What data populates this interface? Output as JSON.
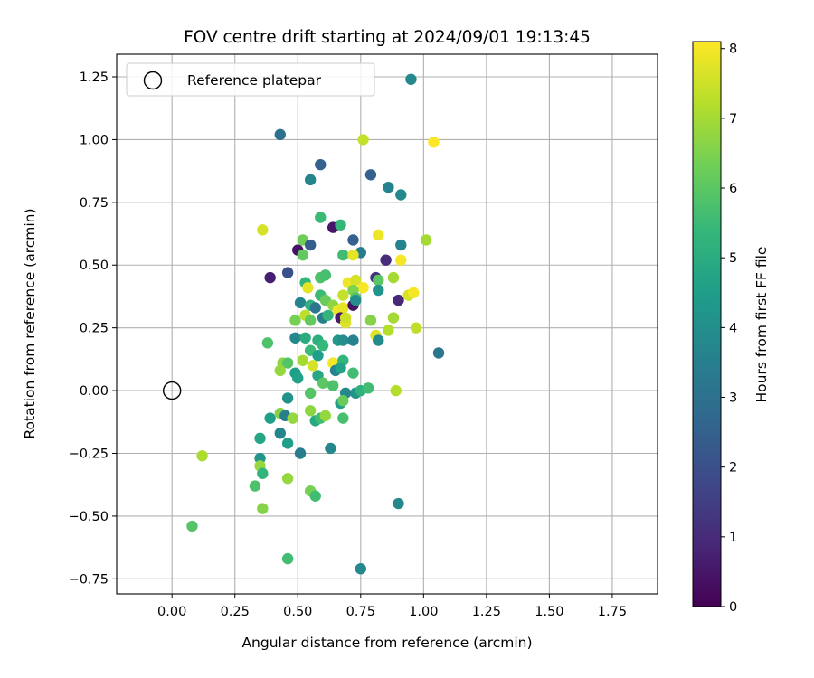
{
  "chart_data": {
    "type": "scatter",
    "title": "FOV centre drift starting at 2024/09/01 19:13:45",
    "xlabel": "Angular distance from reference (arcmin)",
    "ylabel": "Rotation from reference (arcmin)",
    "xlim": [
      -0.22,
      1.93
    ],
    "ylim": [
      -0.81,
      1.34
    ],
    "xticks": [
      0.0,
      0.25,
      0.5,
      0.75,
      1.0,
      1.25,
      1.5,
      1.75
    ],
    "xtick_labels": [
      "0.00",
      "0.25",
      "0.50",
      "0.75",
      "1.00",
      "1.25",
      "1.50",
      "1.75"
    ],
    "yticks": [
      -0.75,
      -0.5,
      -0.25,
      0.0,
      0.25,
      0.5,
      0.75,
      1.0,
      1.25
    ],
    "ytick_labels": [
      "−0.75",
      "−0.50",
      "−0.25",
      "0.00",
      "0.25",
      "0.50",
      "0.75",
      "1.00",
      "1.25"
    ],
    "grid": true,
    "legend": {
      "placement": "top-left",
      "entries": [
        "Reference platepar"
      ]
    },
    "reference_point": {
      "x": 0.0,
      "y": 0.0,
      "marker": "open-circle"
    },
    "colorbar": {
      "label": "Hours from first FF file",
      "range": [
        0,
        8.1
      ],
      "ticks": [
        0,
        1,
        2,
        3,
        4,
        5,
        6,
        7,
        8
      ],
      "colormap": "viridis",
      "colormap_stops": [
        "#440154",
        "#482878",
        "#3e4989",
        "#31688e",
        "#26828e",
        "#1f9e89",
        "#35b779",
        "#6ece58",
        "#b5de2b",
        "#fde725"
      ]
    },
    "points": [
      {
        "x": 0.43,
        "y": 1.02,
        "c": 3.0
      },
      {
        "x": 0.95,
        "y": 1.24,
        "c": 3.8
      },
      {
        "x": 0.76,
        "y": 1.0,
        "c": 7.4
      },
      {
        "x": 1.04,
        "y": 0.99,
        "c": 8.1
      },
      {
        "x": 0.59,
        "y": 0.9,
        "c": 2.5
      },
      {
        "x": 0.79,
        "y": 0.86,
        "c": 2.5
      },
      {
        "x": 0.55,
        "y": 0.84,
        "c": 3.7
      },
      {
        "x": 0.86,
        "y": 0.81,
        "c": 3.6
      },
      {
        "x": 0.91,
        "y": 0.78,
        "c": 3.8
      },
      {
        "x": 0.59,
        "y": 0.69,
        "c": 5.5
      },
      {
        "x": 0.36,
        "y": 0.64,
        "c": 7.6
      },
      {
        "x": 0.64,
        "y": 0.65,
        "c": 0.5
      },
      {
        "x": 0.67,
        "y": 0.66,
        "c": 5.4
      },
      {
        "x": 0.82,
        "y": 0.62,
        "c": 7.9
      },
      {
        "x": 0.72,
        "y": 0.6,
        "c": 2.5
      },
      {
        "x": 0.52,
        "y": 0.6,
        "c": 6.3
      },
      {
        "x": 1.01,
        "y": 0.6,
        "c": 7.0
      },
      {
        "x": 0.5,
        "y": 0.56,
        "c": 0.4
      },
      {
        "x": 0.55,
        "y": 0.58,
        "c": 2.4
      },
      {
        "x": 0.91,
        "y": 0.58,
        "c": 3.6
      },
      {
        "x": 0.75,
        "y": 0.55,
        "c": 3.4
      },
      {
        "x": 0.52,
        "y": 0.54,
        "c": 6.1
      },
      {
        "x": 0.68,
        "y": 0.54,
        "c": 5.6
      },
      {
        "x": 0.72,
        "y": 0.54,
        "c": 7.8
      },
      {
        "x": 0.85,
        "y": 0.52,
        "c": 1.0
      },
      {
        "x": 0.91,
        "y": 0.52,
        "c": 8.0
      },
      {
        "x": 0.39,
        "y": 0.45,
        "c": 0.7
      },
      {
        "x": 0.46,
        "y": 0.47,
        "c": 2.0
      },
      {
        "x": 0.59,
        "y": 0.45,
        "c": 5.8
      },
      {
        "x": 0.61,
        "y": 0.46,
        "c": 5.7
      },
      {
        "x": 0.81,
        "y": 0.45,
        "c": 1.2
      },
      {
        "x": 0.82,
        "y": 0.44,
        "c": 6.0
      },
      {
        "x": 0.88,
        "y": 0.45,
        "c": 7.0
      },
      {
        "x": 0.53,
        "y": 0.43,
        "c": 5.3
      },
      {
        "x": 0.54,
        "y": 0.41,
        "c": 7.8
      },
      {
        "x": 0.7,
        "y": 0.43,
        "c": 7.9
      },
      {
        "x": 0.73,
        "y": 0.44,
        "c": 7.6
      },
      {
        "x": 0.76,
        "y": 0.41,
        "c": 8.0
      },
      {
        "x": 0.68,
        "y": 0.38,
        "c": 7.4
      },
      {
        "x": 0.72,
        "y": 0.4,
        "c": 6.5
      },
      {
        "x": 0.82,
        "y": 0.4,
        "c": 4.2
      },
      {
        "x": 0.59,
        "y": 0.38,
        "c": 5.5
      },
      {
        "x": 0.61,
        "y": 0.36,
        "c": 6.2
      },
      {
        "x": 0.73,
        "y": 0.37,
        "c": 5.9
      },
      {
        "x": 0.94,
        "y": 0.38,
        "c": 7.6
      },
      {
        "x": 0.96,
        "y": 0.39,
        "c": 8.0
      },
      {
        "x": 0.51,
        "y": 0.35,
        "c": 3.7
      },
      {
        "x": 0.55,
        "y": 0.34,
        "c": 5.2
      },
      {
        "x": 0.57,
        "y": 0.33,
        "c": 3.2
      },
      {
        "x": 0.64,
        "y": 0.34,
        "c": 6.7
      },
      {
        "x": 0.66,
        "y": 0.32,
        "c": 7.9
      },
      {
        "x": 0.68,
        "y": 0.33,
        "c": 7.8
      },
      {
        "x": 0.72,
        "y": 0.34,
        "c": 0.4
      },
      {
        "x": 0.73,
        "y": 0.36,
        "c": 4.0
      },
      {
        "x": 0.9,
        "y": 0.36,
        "c": 0.9
      },
      {
        "x": 0.49,
        "y": 0.28,
        "c": 6.4
      },
      {
        "x": 0.53,
        "y": 0.3,
        "c": 7.3
      },
      {
        "x": 0.55,
        "y": 0.28,
        "c": 6.1
      },
      {
        "x": 0.6,
        "y": 0.29,
        "c": 3.5
      },
      {
        "x": 0.62,
        "y": 0.3,
        "c": 5.3
      },
      {
        "x": 0.67,
        "y": 0.29,
        "c": 0.6
      },
      {
        "x": 0.69,
        "y": 0.27,
        "c": 7.7
      },
      {
        "x": 0.69,
        "y": 0.29,
        "c": 7.5
      },
      {
        "x": 0.79,
        "y": 0.28,
        "c": 6.6
      },
      {
        "x": 0.88,
        "y": 0.29,
        "c": 7.0
      },
      {
        "x": 0.86,
        "y": 0.24,
        "c": 7.2
      },
      {
        "x": 0.97,
        "y": 0.25,
        "c": 7.3
      },
      {
        "x": 0.81,
        "y": 0.22,
        "c": 7.7
      },
      {
        "x": 0.82,
        "y": 0.2,
        "c": 3.9
      },
      {
        "x": 0.49,
        "y": 0.21,
        "c": 3.8
      },
      {
        "x": 0.53,
        "y": 0.21,
        "c": 5.0
      },
      {
        "x": 0.58,
        "y": 0.2,
        "c": 5.1
      },
      {
        "x": 0.6,
        "y": 0.18,
        "c": 5.4
      },
      {
        "x": 0.66,
        "y": 0.2,
        "c": 4.3
      },
      {
        "x": 0.68,
        "y": 0.2,
        "c": 4.0
      },
      {
        "x": 0.72,
        "y": 0.2,
        "c": 3.6
      },
      {
        "x": 0.38,
        "y": 0.19,
        "c": 5.8
      },
      {
        "x": 0.55,
        "y": 0.16,
        "c": 5.5
      },
      {
        "x": 0.58,
        "y": 0.14,
        "c": 4.5
      },
      {
        "x": 0.52,
        "y": 0.12,
        "c": 7.0
      },
      {
        "x": 0.56,
        "y": 0.1,
        "c": 7.6
      },
      {
        "x": 0.64,
        "y": 0.11,
        "c": 8.0
      },
      {
        "x": 0.68,
        "y": 0.12,
        "c": 5.3
      },
      {
        "x": 0.44,
        "y": 0.11,
        "c": 6.7
      },
      {
        "x": 0.46,
        "y": 0.11,
        "c": 5.9
      },
      {
        "x": 0.43,
        "y": 0.08,
        "c": 6.8
      },
      {
        "x": 0.49,
        "y": 0.07,
        "c": 4.5
      },
      {
        "x": 0.58,
        "y": 0.06,
        "c": 4.8
      },
      {
        "x": 0.65,
        "y": 0.08,
        "c": 3.6
      },
      {
        "x": 0.67,
        "y": 0.09,
        "c": 4.6
      },
      {
        "x": 0.72,
        "y": 0.07,
        "c": 5.6
      },
      {
        "x": 0.5,
        "y": 0.05,
        "c": 4.6
      },
      {
        "x": 0.6,
        "y": 0.03,
        "c": 6.0
      },
      {
        "x": 0.64,
        "y": 0.02,
        "c": 5.8
      },
      {
        "x": 0.73,
        "y": -0.01,
        "c": 4.2
      },
      {
        "x": 0.75,
        "y": 0.0,
        "c": 5.2
      },
      {
        "x": 0.78,
        "y": 0.01,
        "c": 5.6
      },
      {
        "x": 0.89,
        "y": 0.0,
        "c": 7.2
      },
      {
        "x": 0.55,
        "y": -0.01,
        "c": 5.9
      },
      {
        "x": 0.69,
        "y": -0.01,
        "c": 3.8
      },
      {
        "x": 0.46,
        "y": -0.03,
        "c": 4.1
      },
      {
        "x": 0.67,
        "y": -0.05,
        "c": 4.5
      },
      {
        "x": 0.68,
        "y": -0.04,
        "c": 6.2
      },
      {
        "x": 0.39,
        "y": -0.11,
        "c": 4.5
      },
      {
        "x": 0.43,
        "y": -0.09,
        "c": 6.6
      },
      {
        "x": 0.45,
        "y": -0.1,
        "c": 3.5
      },
      {
        "x": 0.48,
        "y": -0.11,
        "c": 6.8
      },
      {
        "x": 0.55,
        "y": -0.08,
        "c": 6.7
      },
      {
        "x": 0.57,
        "y": -0.12,
        "c": 4.9
      },
      {
        "x": 0.59,
        "y": -0.11,
        "c": 5.6
      },
      {
        "x": 0.61,
        "y": -0.1,
        "c": 6.8
      },
      {
        "x": 0.68,
        "y": -0.11,
        "c": 5.7
      },
      {
        "x": 0.43,
        "y": -0.17,
        "c": 3.7
      },
      {
        "x": 0.35,
        "y": -0.19,
        "c": 4.8
      },
      {
        "x": 0.46,
        "y": -0.21,
        "c": 4.5
      },
      {
        "x": 0.51,
        "y": -0.25,
        "c": 3.4
      },
      {
        "x": 0.63,
        "y": -0.23,
        "c": 3.8
      },
      {
        "x": 0.12,
        "y": -0.26,
        "c": 7.1
      },
      {
        "x": 0.35,
        "y": -0.27,
        "c": 4.2
      },
      {
        "x": 0.35,
        "y": -0.3,
        "c": 6.8
      },
      {
        "x": 0.36,
        "y": -0.33,
        "c": 5.3
      },
      {
        "x": 0.46,
        "y": -0.35,
        "c": 6.8
      },
      {
        "x": 0.33,
        "y": -0.38,
        "c": 5.8
      },
      {
        "x": 0.55,
        "y": -0.4,
        "c": 6.4
      },
      {
        "x": 0.57,
        "y": -0.42,
        "c": 5.6
      },
      {
        "x": 0.36,
        "y": -0.47,
        "c": 6.6
      },
      {
        "x": 0.9,
        "y": -0.45,
        "c": 3.8
      },
      {
        "x": 0.08,
        "y": -0.54,
        "c": 5.9
      },
      {
        "x": 0.46,
        "y": -0.67,
        "c": 5.6
      },
      {
        "x": 0.75,
        "y": -0.71,
        "c": 3.8
      },
      {
        "x": 1.06,
        "y": 0.15,
        "c": 3.2
      }
    ]
  }
}
